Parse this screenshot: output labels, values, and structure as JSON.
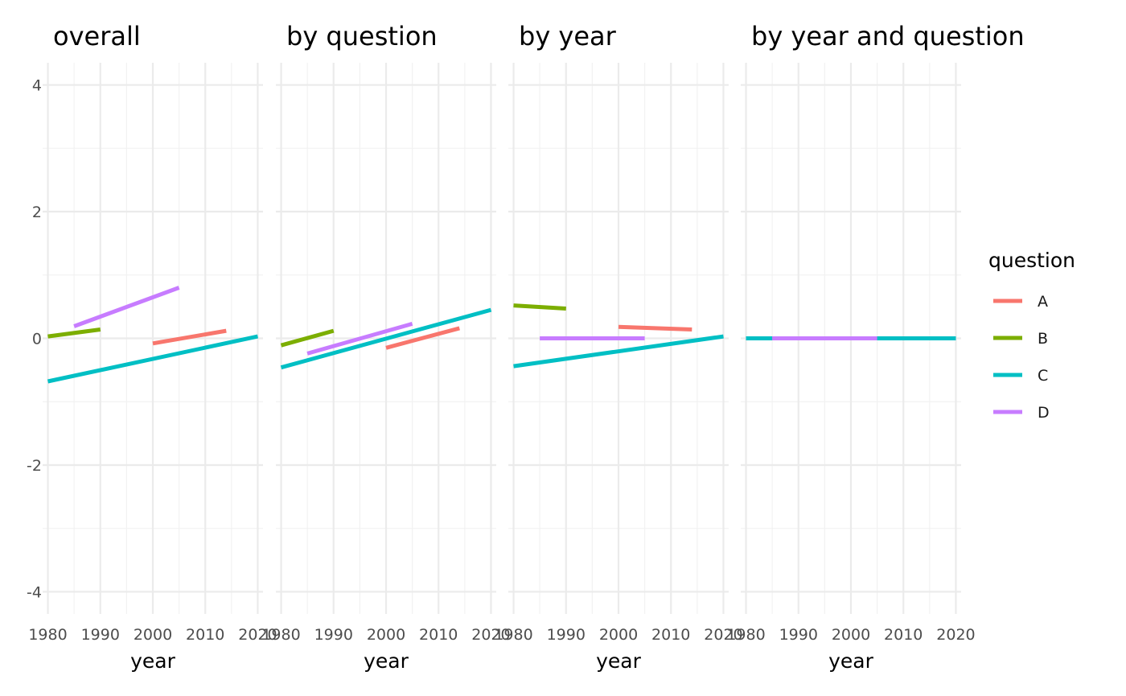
{
  "chart_data": {
    "type": "line",
    "xlabel": "year",
    "ylim": [
      -4.35,
      4.35
    ],
    "xlim": [
      1979,
      2021
    ],
    "yticks": [
      -4,
      -2,
      0,
      2,
      4
    ],
    "ytick_labels": [
      "-4",
      "-2",
      "0",
      "2",
      "4"
    ],
    "xticks": [
      1980,
      1990,
      2000,
      2010,
      2020
    ],
    "xtick_labels": [
      "1980",
      "1990",
      "2000",
      "2010",
      "2020"
    ],
    "grid": true,
    "legend": {
      "title": "question",
      "placement": "right",
      "entries": [
        {
          "label": "A",
          "color": "#F8766D"
        },
        {
          "label": "B",
          "color": "#7CAE00"
        },
        {
          "label": "C",
          "color": "#00BFC4"
        },
        {
          "label": "D",
          "color": "#C77CFF"
        }
      ]
    },
    "panels": [
      {
        "title": "overall",
        "series": [
          {
            "name": "A",
            "x": [
              2000,
              2014
            ],
            "y": [
              -0.08,
              0.12
            ]
          },
          {
            "name": "B",
            "x": [
              1980,
              1990
            ],
            "y": [
              0.03,
              0.14
            ]
          },
          {
            "name": "C",
            "x": [
              1980,
              2020
            ],
            "y": [
              -0.68,
              0.03
            ]
          },
          {
            "name": "D",
            "x": [
              1985,
              2005
            ],
            "y": [
              0.19,
              0.8
            ]
          }
        ]
      },
      {
        "title": "by question",
        "series": [
          {
            "name": "A",
            "x": [
              2000,
              2014
            ],
            "y": [
              -0.15,
              0.16
            ]
          },
          {
            "name": "B",
            "x": [
              1980,
              1990
            ],
            "y": [
              -0.11,
              0.12
            ]
          },
          {
            "name": "C",
            "x": [
              1980,
              2020
            ],
            "y": [
              -0.46,
              0.45
            ]
          },
          {
            "name": "D",
            "x": [
              1985,
              2005
            ],
            "y": [
              -0.24,
              0.23
            ]
          }
        ]
      },
      {
        "title": "by year",
        "series": [
          {
            "name": "A",
            "x": [
              2000,
              2014
            ],
            "y": [
              0.18,
              0.14
            ]
          },
          {
            "name": "B",
            "x": [
              1980,
              1990
            ],
            "y": [
              0.52,
              0.47
            ]
          },
          {
            "name": "C",
            "x": [
              1980,
              2020
            ],
            "y": [
              -0.44,
              0.03
            ]
          },
          {
            "name": "D",
            "x": [
              1985,
              2005
            ],
            "y": [
              0.0,
              0.0
            ]
          }
        ]
      },
      {
        "title": "by year and question",
        "series": [
          {
            "name": "A",
            "x": [
              2000,
              2014
            ],
            "y": [
              0.0,
              0.0
            ]
          },
          {
            "name": "B",
            "x": [
              1980,
              1990
            ],
            "y": [
              0.0,
              0.0
            ]
          },
          {
            "name": "C",
            "x": [
              1980,
              2020
            ],
            "y": [
              0.0,
              0.0
            ]
          },
          {
            "name": "D",
            "x": [
              1985,
              2005
            ],
            "y": [
              0.0,
              0.0
            ]
          }
        ]
      }
    ]
  }
}
